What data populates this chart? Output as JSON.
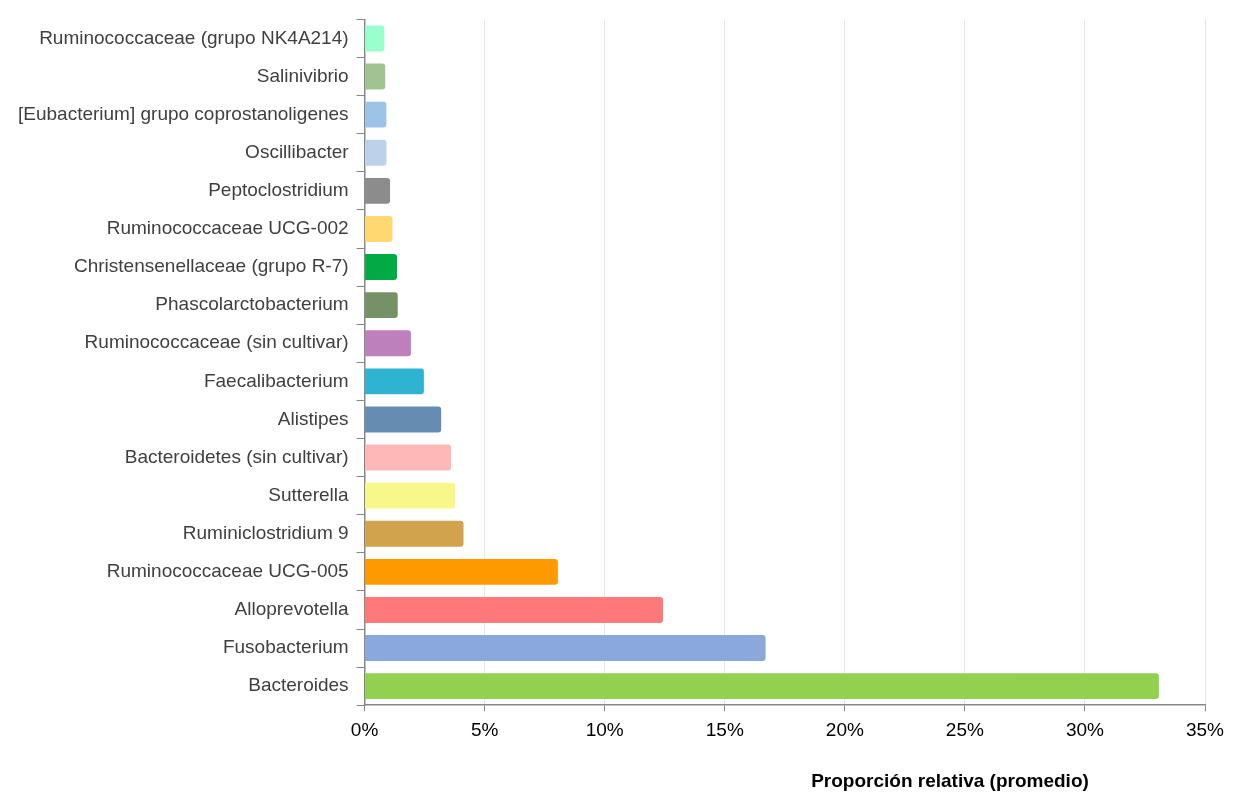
{
  "chart_data": {
    "type": "bar",
    "orientation": "horizontal",
    "xlabel": "Proporción relativa (promedio)",
    "categories": [
      "Ruminococcaceae (grupo NK4A214)",
      "Salinivibrio",
      "[Eubacterium] grupo coprostanoligenes",
      "Oscillibacter",
      "Peptoclostridium",
      "Ruminococcaceae UCG-002",
      "Christensenellaceae (grupo R-7)",
      "Phascolarctobacterium",
      "Ruminococcaceae (sin cultivar)",
      "Faecalibacterium",
      "Alistipes",
      "Bacteroidetes (sin cultivar)",
      "Sutterella",
      "Ruminiclostridium 9",
      "Ruminococcaceae UCG-005",
      "Alloprevotella",
      "Fusobacterium",
      "Bacteroides"
    ],
    "values": [
      0.82,
      0.86,
      0.91,
      0.91,
      1.06,
      1.16,
      1.35,
      1.38,
      1.93,
      2.47,
      3.19,
      3.6,
      3.77,
      4.12,
      8.05,
      12.43,
      16.7,
      33.08
    ],
    "colors": [
      "#99ffcc",
      "#a0c48f",
      "#9dc3e6",
      "#bdd1eb",
      "#8c8c8c",
      "#ffd970",
      "#00ab44",
      "#779166",
      "#bd80bd",
      "#2eb4d1",
      "#668cb3",
      "#ffb8b8",
      "#f7f78a",
      "#d1a34d",
      "#ff9900",
      "#ff787a",
      "#8aa8db",
      "#92d050"
    ],
    "xlim": [
      0,
      35
    ],
    "xticks": [
      {
        "value": 0,
        "label": "0%"
      },
      {
        "value": 5,
        "label": "5%"
      },
      {
        "value": 10,
        "label": "10%"
      },
      {
        "value": 15,
        "label": "15%"
      },
      {
        "value": 20,
        "label": "20%"
      },
      {
        "value": 25,
        "label": "25%"
      },
      {
        "value": 30,
        "label": "30%"
      },
      {
        "value": 35,
        "label": "35%"
      }
    ],
    "grid": "x",
    "legend": false
  }
}
